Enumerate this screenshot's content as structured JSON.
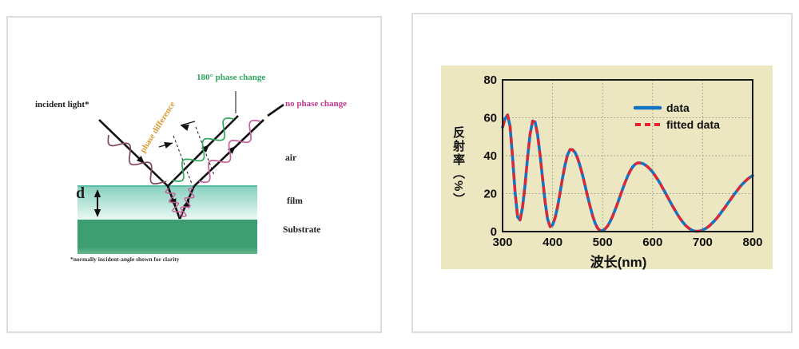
{
  "page": {
    "background": "#ffffff"
  },
  "left_panel": {
    "labels": {
      "incident_light": "incident light*",
      "phase_change_180": "180° phase change",
      "no_phase_change": "no phase change",
      "phase_difference": "phase difference",
      "air": "air",
      "film": "film",
      "substrate": "Substrate",
      "thickness": "d",
      "footnote": "*normally incident-angle shown for clarity"
    },
    "colors": {
      "phase_change_180": "#2fa85c",
      "no_phase_change": "#c0398c",
      "phase_difference": "#d8982f",
      "incident_wave": "#84455f",
      "film_wave": "#c8609b",
      "ray": "#111111",
      "film_top": "#86d0bd",
      "film_bottom": "#eaf9f4",
      "film_edge": "#58bda4",
      "substrate": "#3e9e73",
      "substrate_bottom": "#68b88f"
    }
  },
  "chart_panel": {
    "background": "#ece6c1"
  },
  "chart_data": {
    "type": "line",
    "title": "",
    "xlabel": "波长(nm)",
    "ylabel": "反射率（%）",
    "x_unit": "nm",
    "y_unit": "%",
    "xlim": [
      300,
      800
    ],
    "ylim": [
      0,
      80
    ],
    "xticks": [
      300,
      400,
      500,
      600,
      700,
      800
    ],
    "yticks": [
      0,
      20,
      40,
      60,
      80
    ],
    "grid": true,
    "legend_position": "upper right inside",
    "x_start": 300,
    "x_step": 5,
    "series": [
      {
        "name": "data",
        "color": "#1474c4",
        "style": "solid",
        "values": [
          55.0,
          59.5,
          61.5,
          55.5,
          39.2,
          20.6,
          7.8,
          6.1,
          12.8,
          24.9,
          39.1,
          51.3,
          58.3,
          57.8,
          51.2,
          40.6,
          27.9,
          15.8,
          6.7,
          2.6,
          3.5,
          7.2,
          13.2,
          20.6,
          28.4,
          35.4,
          40.6,
          43.3,
          43.2,
          41.7,
          38.7,
          34.6,
          29.7,
          24.2,
          18.6,
          13.2,
          8.4,
          4.5,
          1.8,
          0.5,
          0.5,
          1.4,
          3.0,
          5.3,
          8.1,
          11.4,
          15.0,
          18.7,
          22.4,
          26.0,
          29.2,
          31.9,
          34.1,
          35.5,
          36.2,
          36.2,
          35.9,
          35.2,
          34.2,
          32.9,
          31.4,
          29.5,
          27.5,
          25.4,
          23.0,
          20.7,
          18.2,
          15.8,
          13.4,
          11.1,
          8.9,
          6.9,
          5.1,
          3.5,
          2.3,
          1.3,
          0.6,
          0.2,
          0.15,
          0.4,
          0.8,
          1.5,
          2.3,
          3.4,
          4.7,
          6.1,
          7.6,
          9.3,
          11.1,
          12.9,
          14.8,
          16.6,
          18.5,
          20.3,
          22.0,
          23.7,
          25.2,
          26.5,
          27.7,
          28.7,
          29.5
        ]
      },
      {
        "name": "fitted data",
        "color": "#e8232e",
        "style": "dashed",
        "values_same_as": "data"
      }
    ]
  }
}
